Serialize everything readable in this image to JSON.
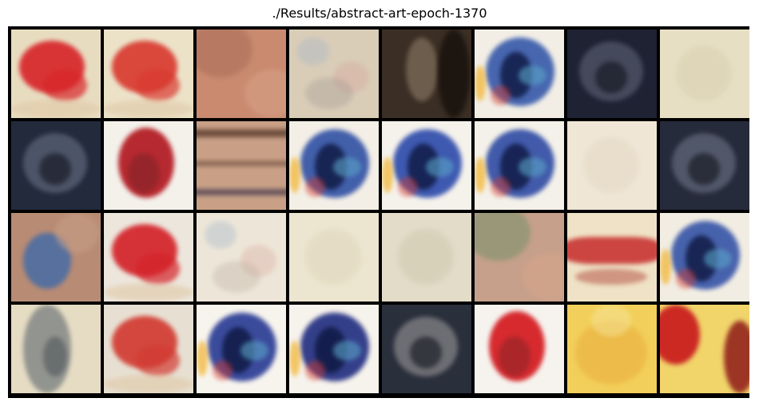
{
  "figure": {
    "title": "./Results/abstract-art-epoch-1370",
    "grid": {
      "rows": 4,
      "cols": 8
    }
  },
  "tiles": [
    {
      "style": "red-on-cream",
      "bg": "#e8dcc0",
      "accent": "#d8262a"
    },
    {
      "style": "red-on-cream",
      "bg": "#ece2c8",
      "accent": "#d93a30"
    },
    {
      "style": "terracotta",
      "bg": "#c98a70",
      "accent": "#a86a55"
    },
    {
      "style": "speckled-pastel",
      "bg": "#d9cdb8",
      "accent": "#9a8f8a"
    },
    {
      "style": "dark-brown",
      "bg": "#3b2e24",
      "accent": "#c9b597"
    },
    {
      "style": "blue-swirl",
      "bg": "#f2eee6",
      "accent": "#2a4fa6"
    },
    {
      "style": "dark-navy",
      "bg": "#1e2233",
      "accent": "#8b93a8"
    },
    {
      "style": "pale-cream",
      "bg": "#e7dfc4",
      "accent": "#d8cfb0"
    },
    {
      "style": "dark-navy",
      "bg": "#232a3c",
      "accent": "#9aa4bb"
    },
    {
      "style": "red-on-white",
      "bg": "#f4f0ea",
      "accent": "#b0141c"
    },
    {
      "style": "striped-brown",
      "bg": "#c9a086",
      "accent": "#5a3b2c"
    },
    {
      "style": "blue-swirl",
      "bg": "#f3efe6",
      "accent": "#2446a0"
    },
    {
      "style": "blue-swirl",
      "bg": "#f5f2ec",
      "accent": "#1f3fa6"
    },
    {
      "style": "blue-swirl",
      "bg": "#f4f1ea",
      "accent": "#22409f"
    },
    {
      "style": "pale-cream",
      "bg": "#efe6d6",
      "accent": "#e3d7c2"
    },
    {
      "style": "dark-navy",
      "bg": "#262b3b",
      "accent": "#a3abbe"
    },
    {
      "style": "blue-wash",
      "bg": "#b88b74",
      "accent": "#3f6aa8"
    },
    {
      "style": "red-on-cream",
      "bg": "#ece6dc",
      "accent": "#d4232a"
    },
    {
      "style": "speckled-pastel",
      "bg": "#ede6d8",
      "accent": "#b5a79a"
    },
    {
      "style": "pale-cream",
      "bg": "#ece5cf",
      "accent": "#ded5ba"
    },
    {
      "style": "pale-cream",
      "bg": "#e2dcc8",
      "accent": "#cfc7ae"
    },
    {
      "style": "terracotta",
      "bg": "#c6a08a",
      "accent": "#6e8f68"
    },
    {
      "style": "red-band",
      "bg": "#efe2c6",
      "accent": "#c62a2a"
    },
    {
      "style": "blue-swirl",
      "bg": "#f1ede3",
      "accent": "#2a4aa3"
    },
    {
      "style": "smoky",
      "bg": "#e6dcc4",
      "accent": "#4e5a64"
    },
    {
      "style": "red-on-cream",
      "bg": "#e7e0d2",
      "accent": "#d23b32"
    },
    {
      "style": "blue-swirl",
      "bg": "#f7f4ee",
      "accent": "#1b2e8e"
    },
    {
      "style": "blue-swirl",
      "bg": "#f6f2ec",
      "accent": "#13207a"
    },
    {
      "style": "dark-navy",
      "bg": "#2a2f3c",
      "accent": "#e9e4da"
    },
    {
      "style": "red-on-white",
      "bg": "#f6f3ee",
      "accent": "#d3151b"
    },
    {
      "style": "yellow",
      "bg": "#f2cf5a",
      "accent": "#e8a93a"
    },
    {
      "style": "red-yellow",
      "bg": "#f1d46a",
      "accent": "#c8171c"
    }
  ]
}
